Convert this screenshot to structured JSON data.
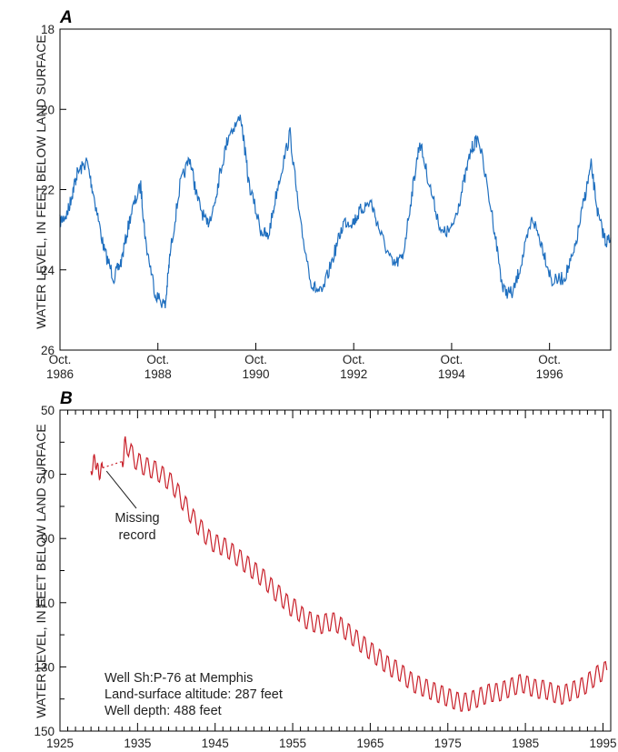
{
  "chart_data": [
    {
      "panel": "A",
      "type": "line",
      "title": "",
      "xlabel": "",
      "ylabel": "WATER LEVEL, IN FEET BELOW LAND SURFACE",
      "ylim": [
        18,
        26
      ],
      "y_inverted": true,
      "y_ticks": [
        18,
        20,
        22,
        24,
        26
      ],
      "x_ticks": [
        {
          "value": 1986.75,
          "label_line1": "Oct.",
          "label_line2": "1986"
        },
        {
          "value": 1988.75,
          "label_line1": "Oct.",
          "label_line2": "1988"
        },
        {
          "value": 1990.75,
          "label_line1": "Oct.",
          "label_line2": "1990"
        },
        {
          "value": 1992.75,
          "label_line1": "Oct.",
          "label_line2": "1992"
        },
        {
          "value": 1994.75,
          "label_line1": "Oct.",
          "label_line2": "1994"
        },
        {
          "value": 1996.75,
          "label_line1": "Oct.",
          "label_line2": "1996"
        }
      ],
      "xlim": [
        1986.75,
        1998.0
      ],
      "grid": false,
      "color": "#1f6fbf",
      "series": [
        {
          "name": "",
          "x": [
            1986.75,
            1986.9,
            1987.0,
            1987.1,
            1987.3,
            1987.45,
            1987.65,
            1987.85,
            1988.0,
            1988.2,
            1988.4,
            1988.5,
            1988.7,
            1988.9,
            1989.0,
            1989.2,
            1989.4,
            1989.55,
            1989.75,
            1989.9,
            1990.0,
            1990.2,
            1990.45,
            1990.6,
            1990.85,
            1991.0,
            1991.2,
            1991.45,
            1991.65,
            1991.9,
            1992.1,
            1992.35,
            1992.55,
            1992.75,
            1992.9,
            1993.1,
            1993.3,
            1993.55,
            1993.75,
            1993.95,
            1994.1,
            1994.3,
            1994.55,
            1994.75,
            1994.95,
            1995.15,
            1995.3,
            1995.6,
            1995.8,
            1996.0,
            1996.2,
            1996.4,
            1996.6,
            1996.8,
            1997.05,
            1997.25,
            1997.45,
            1997.6,
            1997.75,
            1997.9,
            1998.0
          ],
          "y": [
            22.8,
            22.6,
            22.1,
            21.6,
            21.3,
            22.2,
            23.5,
            24.2,
            23.8,
            22.6,
            21.9,
            23.3,
            24.6,
            24.9,
            23.6,
            21.9,
            21.2,
            22.2,
            22.9,
            22.4,
            21.7,
            20.6,
            20.2,
            21.8,
            23.0,
            23.2,
            21.9,
            20.6,
            22.8,
            24.4,
            24.6,
            23.6,
            22.8,
            22.8,
            22.5,
            22.3,
            23.1,
            23.9,
            23.7,
            22.0,
            20.8,
            21.9,
            23.1,
            23.0,
            22.1,
            21.0,
            20.7,
            22.8,
            24.5,
            24.6,
            23.7,
            22.7,
            23.4,
            24.3,
            24.2,
            23.6,
            22.3,
            21.4,
            22.7,
            23.3,
            23.2
          ]
        }
      ]
    },
    {
      "panel": "B",
      "type": "line",
      "title": "",
      "xlabel": "",
      "ylabel": "WATER LEVEL, IN FEET BELOW LAND SURFACE",
      "ylim": [
        50,
        150
      ],
      "y_inverted": true,
      "y_ticks": [
        50,
        70,
        90,
        110,
        130,
        150
      ],
      "x_ticks": [
        1925,
        1935,
        1945,
        1955,
        1965,
        1975,
        1985,
        1995
      ],
      "x_tick_labels": [
        "1925",
        "1935",
        "1945",
        "1955",
        "1965",
        "1975",
        "1985",
        "1995"
      ],
      "xlim": [
        1925,
        1996
      ],
      "grid": false,
      "color": "#c8202a",
      "annotation": {
        "line1": "Missing",
        "line2": "record",
        "point_x": 1931.0,
        "point_y": 69
      },
      "well_info": [
        "Well Sh:P-76 at Memphis",
        "Land-surface altitude:  287 feet",
        "Well depth:  488 feet"
      ],
      "series": [
        {
          "name": "",
          "x": [
            1929.0,
            1929.5,
            1930.0,
            1930.5
          ],
          "y": [
            69,
            65,
            70,
            68
          ]
        },
        {
          "name": "",
          "x": [
            1933.0,
            1933.5,
            1934.5,
            1935.5,
            1936.5,
            1937.5,
            1938.5,
            1939.5,
            1940.5,
            1941.5,
            1942.5,
            1943.5,
            1944.5,
            1945.5,
            1946.5,
            1947.5,
            1948.5,
            1949.5,
            1950.5,
            1951.5,
            1952.5,
            1953.5,
            1954.5,
            1955.5,
            1956.5,
            1957.5,
            1958.5,
            1959.5,
            1960.5,
            1961.5,
            1962.5,
            1963.5,
            1964.5,
            1965.5,
            1966.5,
            1967.5,
            1968.5,
            1969.5,
            1970.5,
            1971.5,
            1972.5,
            1973.5,
            1974.5,
            1975.5,
            1976.5,
            1977.5,
            1978.5,
            1979.5,
            1980.5,
            1981.5,
            1982.5,
            1983.5,
            1984.5,
            1985.5,
            1986.5,
            1987.5,
            1988.5,
            1989.5,
            1990.5,
            1991.5,
            1992.5,
            1993.5,
            1994.5,
            1995.5
          ],
          "y": [
            66,
            60,
            65,
            67,
            68,
            69,
            71,
            73,
            77,
            81,
            85,
            88,
            91,
            92,
            93,
            95,
            97,
            99,
            101,
            103,
            106,
            108,
            111,
            112,
            115,
            116,
            117,
            116,
            116,
            118,
            120,
            122,
            124,
            126,
            128,
            130,
            131,
            133,
            135,
            136,
            137,
            138,
            139,
            140,
            141,
            141,
            140,
            139,
            138,
            138,
            137,
            136,
            135,
            136,
            137,
            137,
            138,
            139,
            138,
            137,
            136,
            134,
            132,
            131
          ]
        }
      ]
    }
  ]
}
